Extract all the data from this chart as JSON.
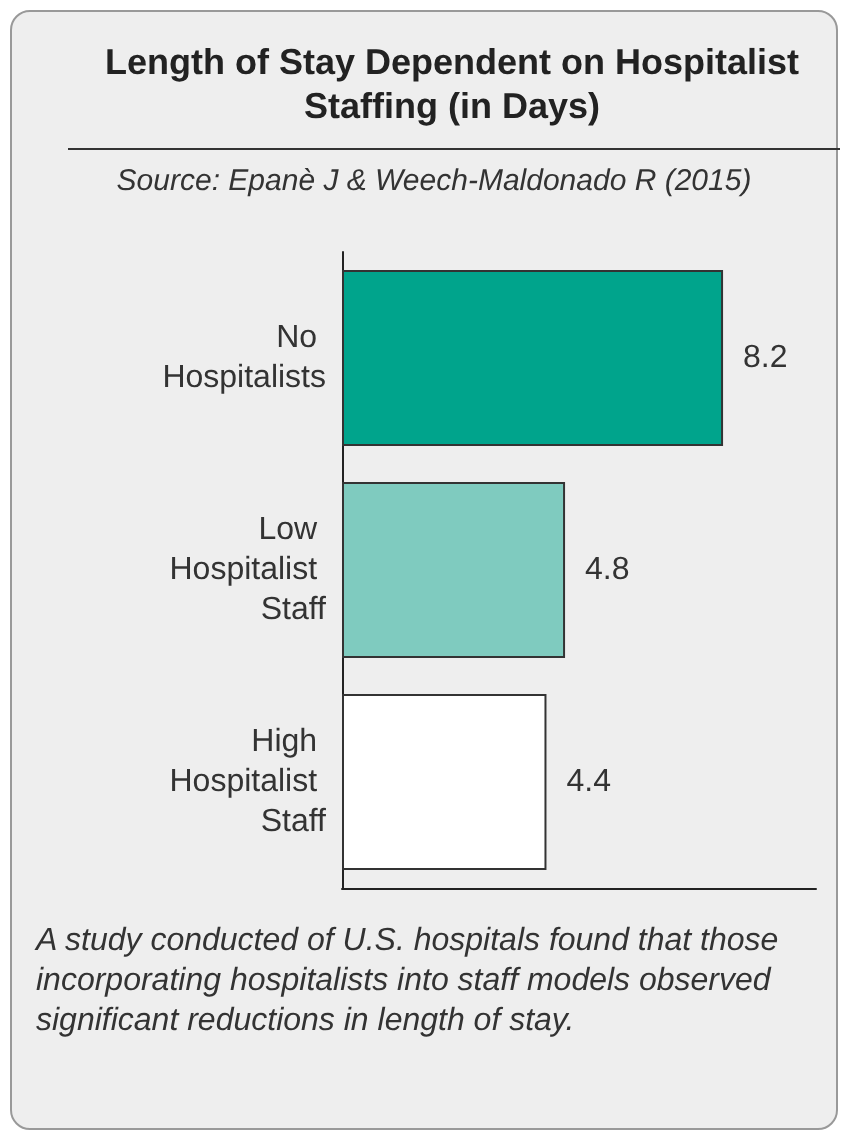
{
  "chart_data": {
    "type": "bar",
    "orientation": "horizontal",
    "title": "Length of Stay Dependent on Hospitalist Staffing (in Days)",
    "subtitle": "Source: Epanè J & Weech-Maldonado R (2015)",
    "categories": [
      "No Hospitalists",
      "Low Hospitalist Staff",
      "High Hospitalist Staff"
    ],
    "values": [
      8.2,
      4.8,
      4.4
    ],
    "colors": [
      "#00a48c",
      "#7fcbbf",
      "#ffffff"
    ],
    "xlim": [
      0,
      10.2
    ],
    "tick_labels": "y",
    "data_labels": true,
    "annotations": [
      "A study conducted of U.S. hospitals found that those incorporating hospitalists into staff models observed significant reductions in length of stay."
    ]
  }
}
